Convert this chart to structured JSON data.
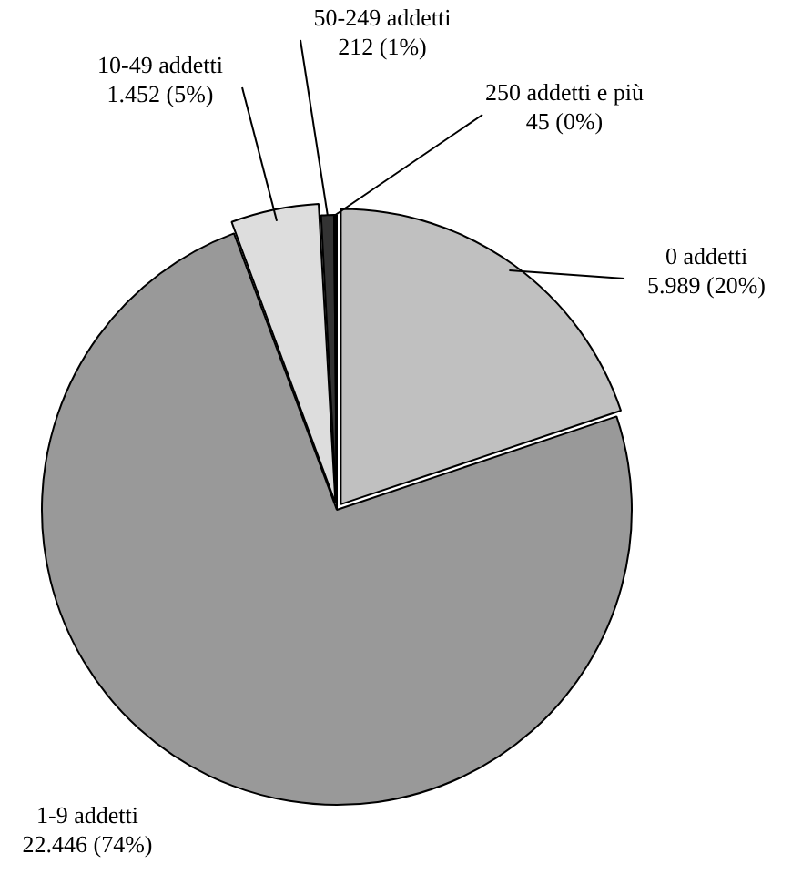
{
  "chart_data": {
    "type": "pie",
    "categories": [
      "0 addetti",
      "1-9 addetti",
      "10-49 addetti",
      "50-249 addetti",
      "250 addetti e più"
    ],
    "values": [
      5989,
      22446,
      1452,
      212,
      45
    ],
    "colors": [
      "#c0c0c0",
      "#999999",
      "#dddddd",
      "#333333",
      "#000000"
    ],
    "value_labels": [
      "5.989 (20%)",
      "22.446 (74%)",
      "1.452 (5%)",
      "212 (1%)",
      "45 (0%)"
    ]
  }
}
